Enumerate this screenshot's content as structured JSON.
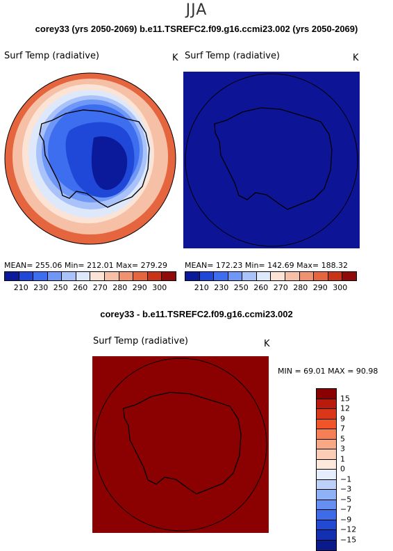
{
  "header": {
    "season": "JJA",
    "runs_line": "corey33 (yrs 2050-2069)   b.e11.TSREFC2.f09.g16.ccmi23.002 (yrs 2050-2069)"
  },
  "panel_left": {
    "title": "Surf Temp (radiative)",
    "unit": "K",
    "stats": "MEAN= 255.06   Min= 212.01     Max= 279.29"
  },
  "panel_right": {
    "title": "Surf Temp (radiative)",
    "unit": "K",
    "stats": "MEAN= 172.23   Min= 142.69     Max= 188.32"
  },
  "colorbar_abs": {
    "labels": [
      "210",
      "230",
      "250",
      "260",
      "270",
      "280",
      "290",
      "300"
    ],
    "colors": [
      "#0a1a9a",
      "#1f48d8",
      "#3d6ef0",
      "#6f97f6",
      "#a9c3fa",
      "#dde8fb",
      "#fbe3d6",
      "#f6c0a6",
      "#ef9270",
      "#e5653f",
      "#c93419",
      "#8f0a08"
    ]
  },
  "difference": {
    "title": "corey33 - b.e11.TSREFC2.f09.g16.ccmi23.002",
    "panel_title": "Surf Temp (radiative)",
    "unit": "K",
    "range_text": "MIN =   69.01  MAX =   90.98"
  },
  "colorbar_diff": {
    "labels": [
      "15",
      "12",
      "9",
      "7",
      "5",
      "3",
      "1",
      "0",
      "−1",
      "−3",
      "−5",
      "−7",
      "−9",
      "−12",
      "−15"
    ],
    "colors": [
      "#8b0000",
      "#b81b0e",
      "#d9361a",
      "#f0552a",
      "#f57e55",
      "#f9a886",
      "#fbcdb4",
      "#fde8dc",
      "#e6eefc",
      "#bcd0fa",
      "#8fb1f6",
      "#6590f2",
      "#3e6ce8",
      "#2249d2",
      "#1230b0",
      "#0a1a8a"
    ]
  },
  "colors": {
    "right_map_fill": "#0d1496",
    "diff_map_fill": "#8b0000"
  }
}
